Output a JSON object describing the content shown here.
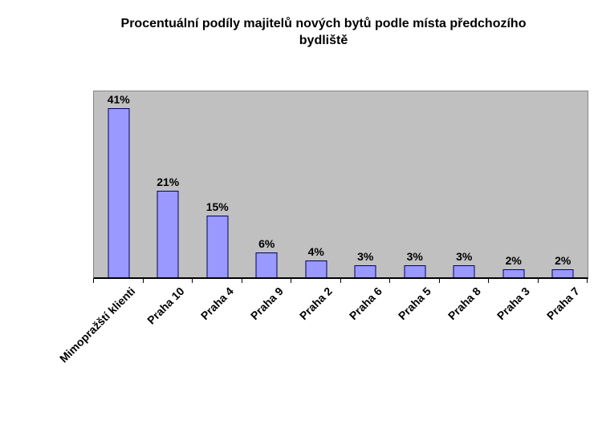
{
  "title": {
    "line1": "Procentuální podíly majitelů nových bytů podle místa předchozího",
    "line2": "bydliště"
  },
  "chart_data": {
    "type": "bar",
    "title": "Procentuální podíly majitelů nových bytů podle místa předchozího bydliště",
    "categories": [
      "Mimopražští klienti",
      "Praha 10",
      "Praha 4",
      "Praha 9",
      "Praha 2",
      "Praha 6",
      "Praha 5",
      "Praha 8",
      "Praha 3",
      "Praha 7"
    ],
    "values": [
      41,
      21,
      15,
      6,
      4,
      3,
      3,
      3,
      2,
      2
    ],
    "value_labels": [
      "41%",
      "21%",
      "15%",
      "6%",
      "4%",
      "3%",
      "3%",
      "3%",
      "2%",
      "2%"
    ],
    "xlabel": "",
    "ylabel": "",
    "ylim": [
      0,
      45
    ],
    "grid": false,
    "legend_position": "none",
    "x_tick_label_rotation_deg": 45,
    "colors": {
      "bar_fill": "#9999FF",
      "bar_border": "#000060",
      "plot_background": "#C0C0C0",
      "plot_border": "#848484",
      "axis": "#000000",
      "text": "#000000",
      "page_background": "#FFFFFF"
    }
  }
}
